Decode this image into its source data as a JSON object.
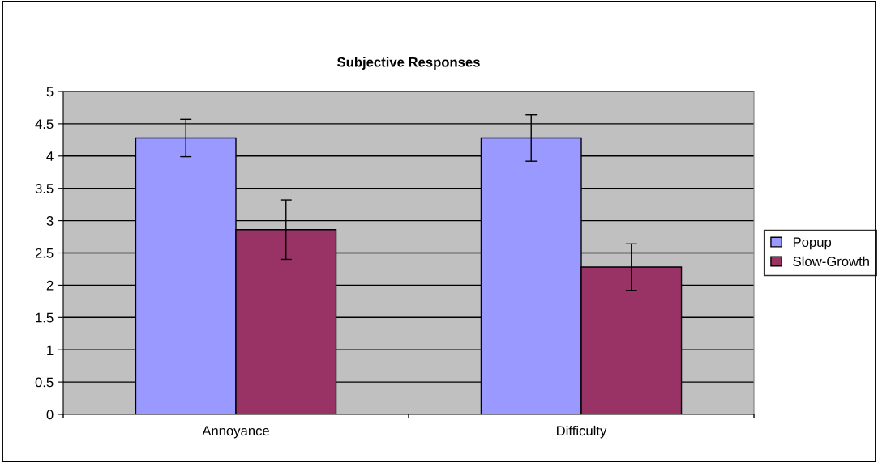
{
  "chart_data": {
    "type": "bar",
    "title": "Subjective Responses",
    "categories": [
      "Annoyance",
      "Difficulty"
    ],
    "series": [
      {
        "name": "Popup",
        "color": "#9999ff",
        "values": [
          4.28,
          4.28
        ],
        "errors": [
          0.29,
          0.36
        ]
      },
      {
        "name": "Slow-Growth",
        "color": "#993366",
        "values": [
          2.86,
          2.28
        ],
        "errors": [
          0.46,
          0.36
        ]
      }
    ],
    "ylim": [
      0,
      5
    ],
    "yticks": [
      0,
      0.5,
      1,
      1.5,
      2,
      2.5,
      3,
      3.5,
      4,
      4.5,
      5
    ],
    "grid": "y",
    "legend": "right"
  }
}
